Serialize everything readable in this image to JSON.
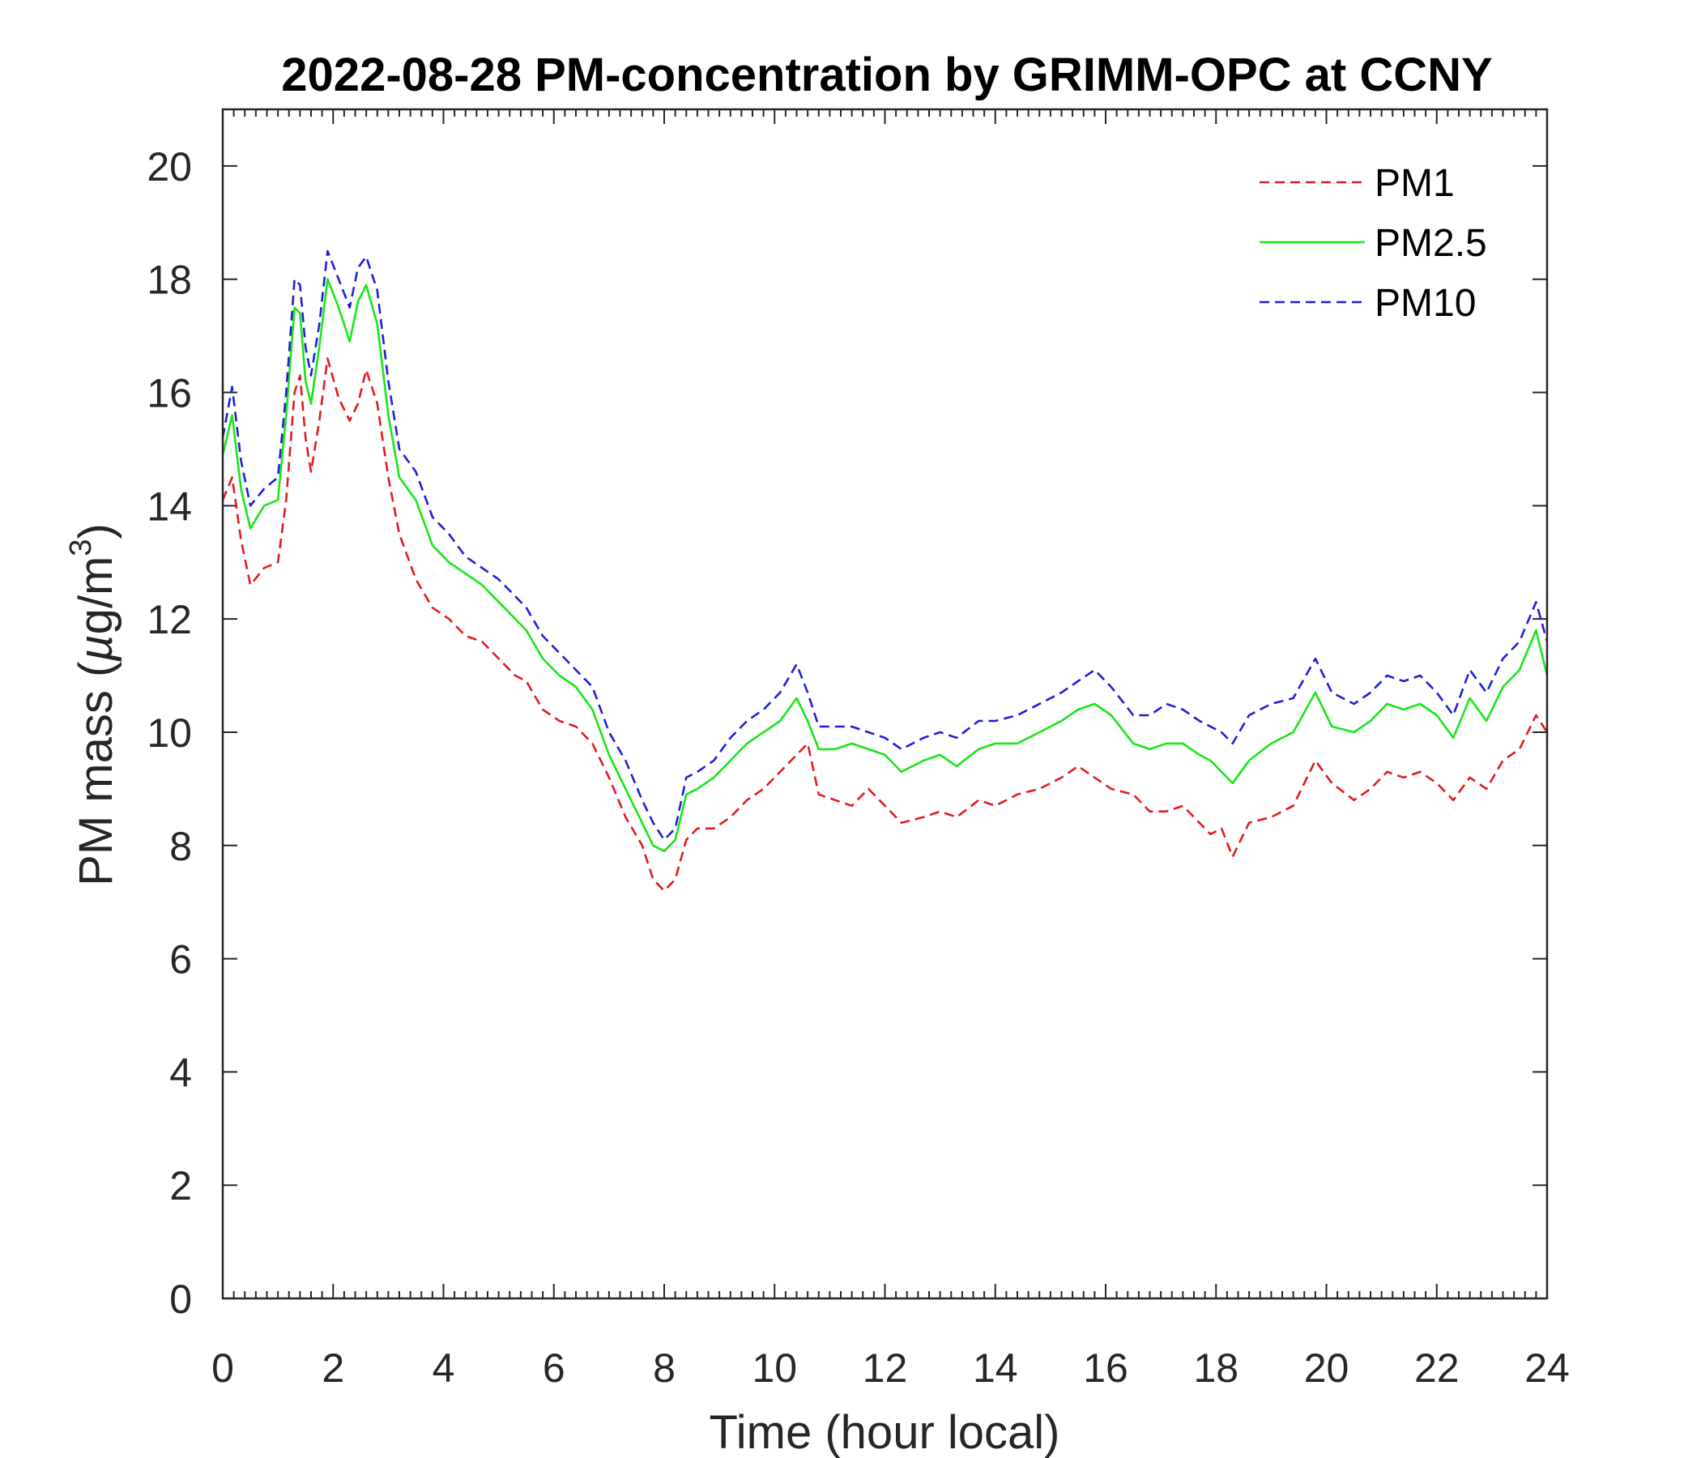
{
  "chart_data": {
    "type": "line",
    "title": "2022-08-28 PM-concentration by GRIMM-OPC at CCNY",
    "xlabel": "Time (hour local)",
    "ylabel": {
      "prefix": "PM mass (",
      "mu": "µ",
      "unit": "g/m",
      "sup": "3",
      "suffix": ")"
    },
    "xlim": [
      0,
      24
    ],
    "ylim": [
      0,
      21
    ],
    "xticks": [
      "0",
      "2",
      "4",
      "6",
      "8",
      "10",
      "12",
      "14",
      "16",
      "18",
      "20",
      "22",
      "24"
    ],
    "yticks": [
      "0",
      "2",
      "4",
      "6",
      "8",
      "10",
      "12",
      "14",
      "16",
      "18",
      "20"
    ],
    "legend_position": "top-right",
    "x": [
      0,
      0.17,
      0.33,
      0.5,
      0.75,
      1,
      1.15,
      1.3,
      1.4,
      1.5,
      1.6,
      1.75,
      1.9,
      2.1,
      2.3,
      2.45,
      2.6,
      2.8,
      3,
      3.2,
      3.5,
      3.8,
      4.1,
      4.4,
      4.7,
      5,
      5.3,
      5.5,
      5.8,
      6.1,
      6.4,
      6.7,
      7,
      7.3,
      7.6,
      7.8,
      8,
      8.2,
      8.4,
      8.6,
      8.9,
      9.2,
      9.5,
      9.8,
      10.1,
      10.4,
      10.6,
      10.8,
      11.1,
      11.4,
      11.7,
      12,
      12.3,
      12.7,
      13,
      13.3,
      13.7,
      14,
      14.4,
      14.8,
      15.2,
      15.5,
      15.8,
      16.1,
      16.5,
      16.8,
      17.1,
      17.4,
      17.7,
      17.9,
      18.1,
      18.3,
      18.6,
      19,
      19.4,
      19.8,
      20.1,
      20.5,
      20.8,
      21.1,
      21.4,
      21.7,
      22,
      22.3,
      22.6,
      22.9,
      23.2,
      23.5,
      23.8,
      24
    ],
    "series": [
      {
        "name": "PM1",
        "color": "#e41a1c",
        "dash": "dashed",
        "values": [
          14.1,
          14.5,
          13.4,
          12.6,
          12.9,
          13.0,
          14.1,
          16.0,
          16.3,
          15.2,
          14.6,
          15.5,
          16.6,
          15.9,
          15.5,
          15.8,
          16.4,
          15.8,
          14.5,
          13.5,
          12.7,
          12.2,
          12.0,
          11.7,
          11.6,
          11.3,
          11.0,
          10.9,
          10.4,
          10.2,
          10.1,
          9.8,
          9.2,
          8.5,
          8.0,
          7.4,
          7.2,
          7.4,
          8.1,
          8.3,
          8.3,
          8.5,
          8.8,
          9.0,
          9.3,
          9.6,
          9.8,
          8.9,
          8.8,
          8.7,
          9.0,
          8.7,
          8.4,
          8.5,
          8.6,
          8.5,
          8.8,
          8.7,
          8.9,
          9.0,
          9.2,
          9.4,
          9.2,
          9.0,
          8.9,
          8.6,
          8.6,
          8.7,
          8.4,
          8.2,
          8.3,
          7.8,
          8.4,
          8.5,
          8.7,
          9.5,
          9.1,
          8.8,
          9.0,
          9.3,
          9.2,
          9.3,
          9.1,
          8.8,
          9.2,
          9.0,
          9.5,
          9.7,
          10.3,
          10.0
        ]
      },
      {
        "name": "PM2.5",
        "color": "#19e619",
        "dash": "solid",
        "values": [
          14.9,
          15.6,
          14.3,
          13.6,
          14.0,
          14.1,
          15.6,
          17.5,
          17.4,
          16.2,
          15.8,
          16.8,
          18.0,
          17.5,
          16.9,
          17.6,
          17.9,
          17.2,
          15.6,
          14.5,
          14.1,
          13.3,
          13.0,
          12.8,
          12.6,
          12.3,
          12.0,
          11.8,
          11.3,
          11.0,
          10.8,
          10.4,
          9.6,
          9.0,
          8.4,
          8.0,
          7.9,
          8.1,
          8.9,
          9.0,
          9.2,
          9.5,
          9.8,
          10.0,
          10.2,
          10.6,
          10.2,
          9.7,
          9.7,
          9.8,
          9.7,
          9.6,
          9.3,
          9.5,
          9.6,
          9.4,
          9.7,
          9.8,
          9.8,
          10.0,
          10.2,
          10.4,
          10.5,
          10.3,
          9.8,
          9.7,
          9.8,
          9.8,
          9.6,
          9.5,
          9.3,
          9.1,
          9.5,
          9.8,
          10.0,
          10.7,
          10.1,
          10.0,
          10.2,
          10.5,
          10.4,
          10.5,
          10.3,
          9.9,
          10.6,
          10.2,
          10.8,
          11.1,
          11.8,
          11.0
        ]
      },
      {
        "name": "PM10",
        "color": "#1f1fd6",
        "dash": "dashed",
        "values": [
          15.2,
          16.1,
          14.8,
          14.0,
          14.3,
          14.5,
          16.0,
          18.0,
          17.9,
          16.8,
          16.3,
          17.2,
          18.5,
          18.0,
          17.5,
          18.2,
          18.4,
          17.8,
          16.2,
          15.0,
          14.6,
          13.8,
          13.5,
          13.1,
          12.9,
          12.7,
          12.4,
          12.2,
          11.7,
          11.4,
          11.1,
          10.8,
          10.0,
          9.5,
          8.8,
          8.4,
          8.1,
          8.3,
          9.2,
          9.3,
          9.5,
          9.9,
          10.2,
          10.4,
          10.7,
          11.2,
          10.7,
          10.1,
          10.1,
          10.1,
          10.0,
          9.9,
          9.7,
          9.9,
          10.0,
          9.9,
          10.2,
          10.2,
          10.3,
          10.5,
          10.7,
          10.9,
          11.1,
          10.8,
          10.3,
          10.3,
          10.5,
          10.4,
          10.2,
          10.1,
          10.0,
          9.8,
          10.3,
          10.5,
          10.6,
          11.3,
          10.7,
          10.5,
          10.7,
          11.0,
          10.9,
          11.0,
          10.7,
          10.3,
          11.1,
          10.7,
          11.3,
          11.6,
          12.3,
          11.6
        ]
      }
    ]
  }
}
